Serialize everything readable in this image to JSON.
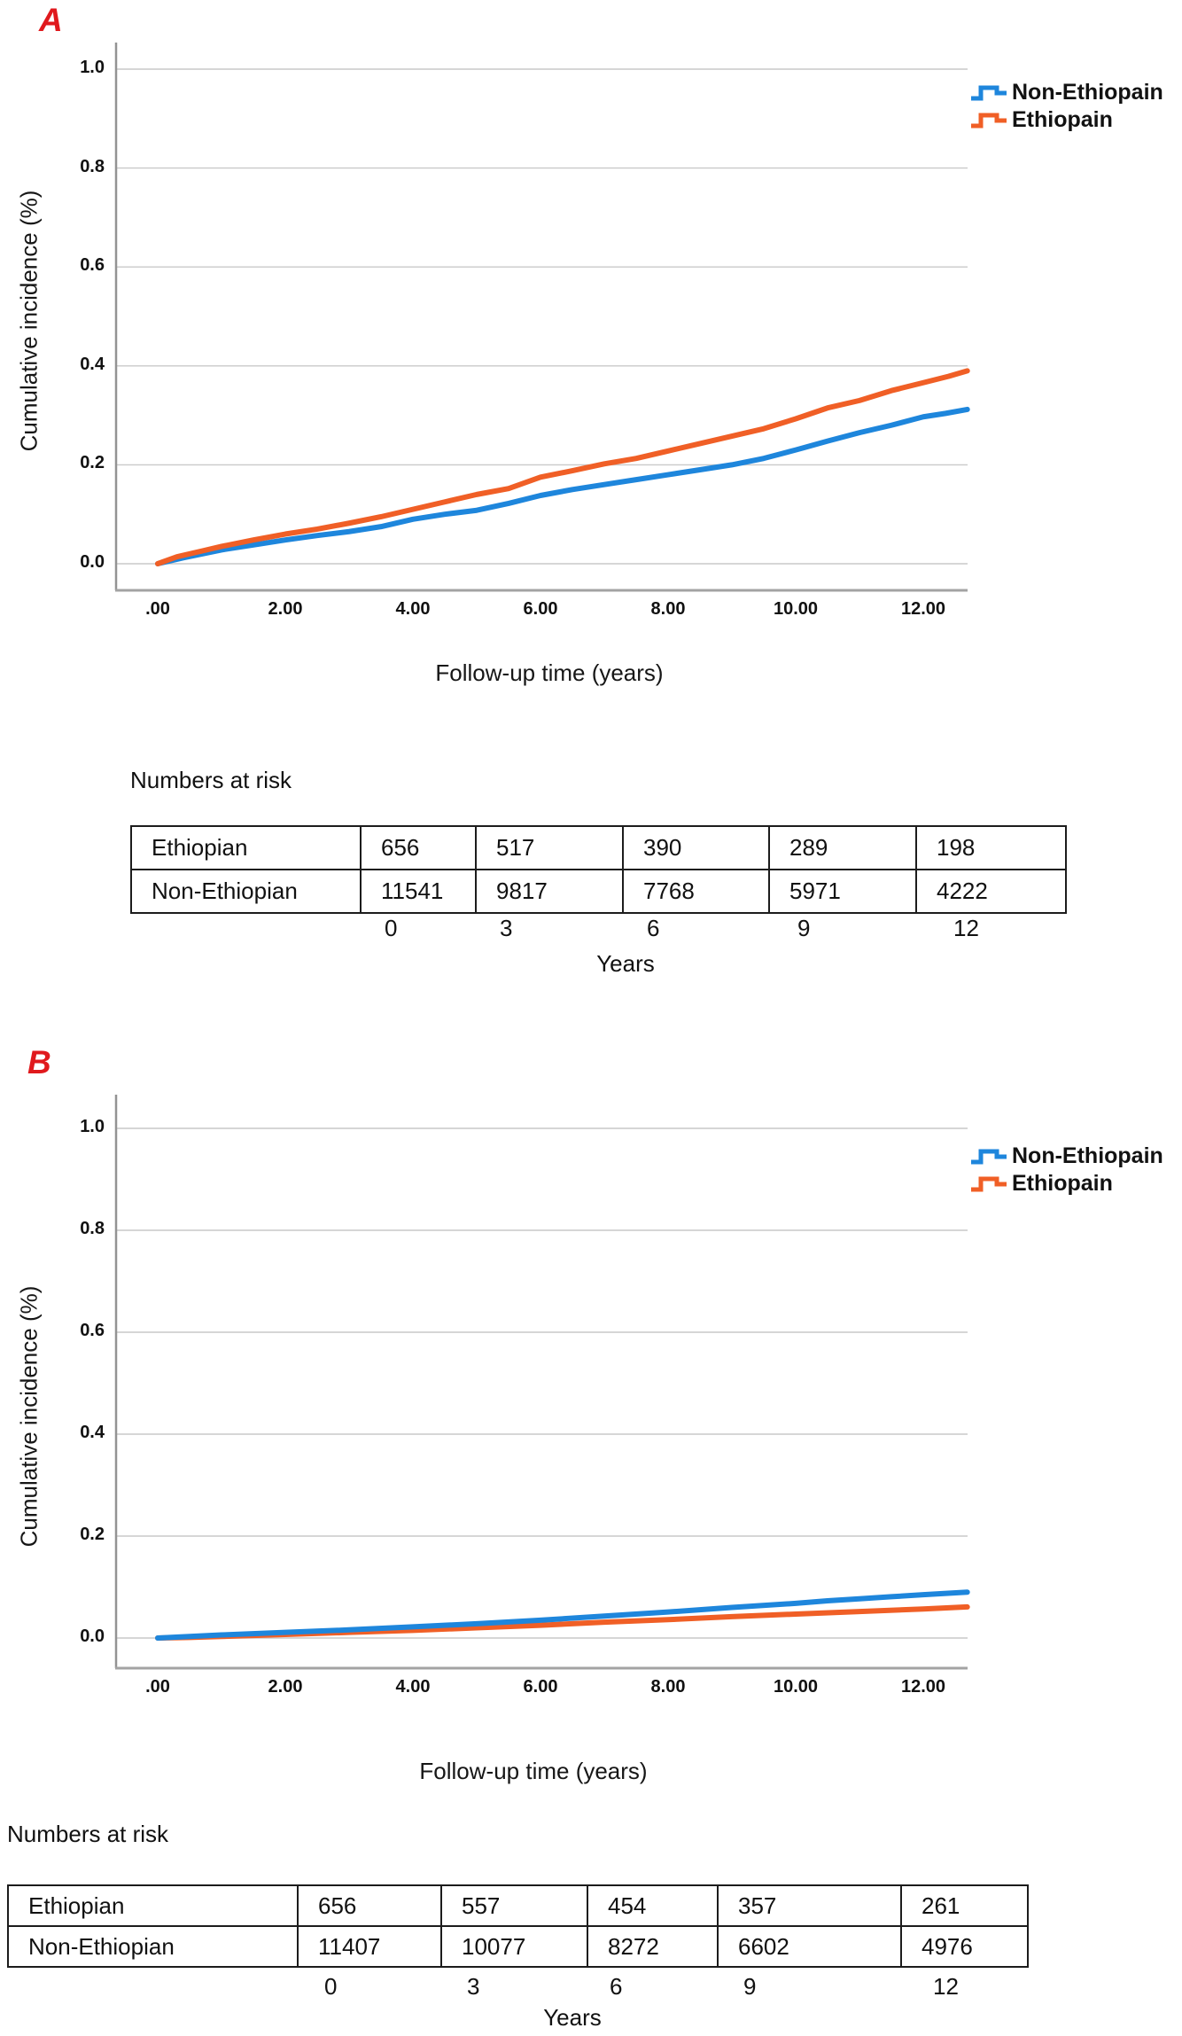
{
  "panels": [
    {
      "label": "A",
      "y_axis_title": "Cumulative incidence (%)",
      "x_axis_title": "Follow-up time (years)",
      "y_ticks": [
        "1.0",
        "0.8",
        "0.6",
        "0.4",
        "0.2",
        "0.0"
      ],
      "x_ticks": [
        ".00",
        "2.00",
        "4.00",
        "6.00",
        "8.00",
        "10.00",
        "12.00"
      ],
      "legend": [
        {
          "name": "Non-Ethiopain",
          "color": "#1e86dc"
        },
        {
          "name": "Ethiopain",
          "color": "#f05f26"
        }
      ],
      "risk_table": {
        "title": "Numbers at risk",
        "rows": [
          {
            "label": "Ethiopian",
            "values": [
              "656",
              "517",
              "390",
              "289",
              "198"
            ]
          },
          {
            "label": "Non-Ethiopian",
            "values": [
              "11541",
              "9817",
              "7768",
              "5971",
              "4222"
            ]
          }
        ],
        "time_ticks": [
          "0",
          "3",
          "6",
          "9",
          "12"
        ],
        "time_axis_label": "Years"
      }
    },
    {
      "label": "B",
      "y_axis_title": "Cumulative incidence (%)",
      "x_axis_title": "Follow-up time (years)",
      "y_ticks": [
        "1.0",
        "0.8",
        "0.6",
        "0.4",
        "0.2",
        "0.0"
      ],
      "x_ticks": [
        ".00",
        "2.00",
        "4.00",
        "6.00",
        "8.00",
        "10.00",
        "12.00"
      ],
      "legend": [
        {
          "name": "Non-Ethiopain",
          "color": "#1e86dc"
        },
        {
          "name": "Ethiopain",
          "color": "#f05f26"
        }
      ],
      "risk_table": {
        "title": "Numbers at risk",
        "rows": [
          {
            "label": "Ethiopian",
            "values": [
              "656",
              "557",
              "454",
              "357",
              "261"
            ]
          },
          {
            "label": "Non-Ethiopian",
            "values": [
              "11407",
              "10077",
              "8272",
              "6602",
              "4976"
            ]
          }
        ],
        "time_ticks": [
          "0",
          "3",
          "6",
          "9",
          "12"
        ],
        "time_axis_label": "Years"
      }
    }
  ],
  "chart_data": [
    {
      "type": "line",
      "title": "Panel A cumulative incidence",
      "xlabel": "Follow-up time (years)",
      "ylabel": "Cumulative incidence (%)",
      "xlim": [
        0,
        12.7
      ],
      "ylim": [
        0,
        1.05
      ],
      "x_tick_values": [
        0,
        2,
        4,
        6,
        8,
        10,
        12
      ],
      "y_tick_values": [
        0,
        0.2,
        0.4,
        0.6,
        0.8,
        1.0
      ],
      "grid": "horizontal",
      "legend_position": "outside-top-right",
      "draw_order": [
        0,
        1
      ],
      "series": [
        {
          "name": "Non-Ethiopain",
          "color": "#1e86dc",
          "points": [
            [
              0,
              0
            ],
            [
              0.4,
              0.012
            ],
            [
              1,
              0.028
            ],
            [
              1.5,
              0.038
            ],
            [
              2,
              0.048
            ],
            [
              2.5,
              0.057
            ],
            [
              3,
              0.065
            ],
            [
              3.5,
              0.075
            ],
            [
              4,
              0.09
            ],
            [
              4.5,
              0.1
            ],
            [
              5,
              0.108
            ],
            [
              5.5,
              0.122
            ],
            [
              6,
              0.138
            ],
            [
              6.5,
              0.15
            ],
            [
              7,
              0.16
            ],
            [
              7.5,
              0.17
            ],
            [
              8,
              0.18
            ],
            [
              8.5,
              0.19
            ],
            [
              9,
              0.2
            ],
            [
              9.5,
              0.213
            ],
            [
              10,
              0.23
            ],
            [
              10.5,
              0.248
            ],
            [
              11,
              0.265
            ],
            [
              11.5,
              0.28
            ],
            [
              12,
              0.297
            ],
            [
              12.35,
              0.304
            ],
            [
              12.69,
              0.312
            ]
          ]
        },
        {
          "name": "Ethiopain",
          "color": "#f05f26",
          "points": [
            [
              0,
              0
            ],
            [
              0.3,
              0.014
            ],
            [
              0.7,
              0.026
            ],
            [
              1,
              0.035
            ],
            [
              1.5,
              0.048
            ],
            [
              2,
              0.06
            ],
            [
              2.5,
              0.07
            ],
            [
              3,
              0.082
            ],
            [
              3.5,
              0.095
            ],
            [
              4,
              0.11
            ],
            [
              4.5,
              0.125
            ],
            [
              5,
              0.14
            ],
            [
              5.5,
              0.152
            ],
            [
              6,
              0.175
            ],
            [
              6.5,
              0.188
            ],
            [
              7,
              0.202
            ],
            [
              7.5,
              0.213
            ],
            [
              8,
              0.228
            ],
            [
              8.5,
              0.243
            ],
            [
              9,
              0.258
            ],
            [
              9.5,
              0.273
            ],
            [
              10,
              0.293
            ],
            [
              10.5,
              0.315
            ],
            [
              11,
              0.33
            ],
            [
              11.5,
              0.35
            ],
            [
              12,
              0.366
            ],
            [
              12.4,
              0.379
            ],
            [
              12.69,
              0.39
            ]
          ]
        }
      ]
    },
    {
      "type": "line",
      "title": "Panel B cumulative incidence",
      "xlabel": "Follow-up time (years)",
      "ylabel": "Cumulative incidence (%)",
      "xlim": [
        0,
        12.7
      ],
      "ylim": [
        0,
        1.05
      ],
      "x_tick_values": [
        0,
        2,
        4,
        6,
        8,
        10,
        12
      ],
      "y_tick_values": [
        0,
        0.2,
        0.4,
        0.6,
        0.8,
        1.0
      ],
      "grid": "horizontal",
      "legend_position": "outside-top-right",
      "draw_order": [
        1,
        0
      ],
      "series": [
        {
          "name": "Non-Ethiopain",
          "color": "#1e86dc",
          "points": [
            [
              0,
              0
            ],
            [
              0.5,
              0.003
            ],
            [
              1,
              0.006
            ],
            [
              2,
              0.011
            ],
            [
              3,
              0.016
            ],
            [
              4,
              0.022
            ],
            [
              5,
              0.028
            ],
            [
              6,
              0.035
            ],
            [
              7,
              0.043
            ],
            [
              8,
              0.051
            ],
            [
              9,
              0.06
            ],
            [
              10,
              0.068
            ],
            [
              10.5,
              0.073
            ],
            [
              11,
              0.077
            ],
            [
              11.5,
              0.081
            ],
            [
              12,
              0.085
            ],
            [
              12.69,
              0.09
            ]
          ]
        },
        {
          "name": "Ethiopain",
          "color": "#f05f26",
          "points": [
            [
              0,
              0
            ],
            [
              0.5,
              0.001
            ],
            [
              1,
              0.003
            ],
            [
              2,
              0.007
            ],
            [
              3,
              0.011
            ],
            [
              4,
              0.015
            ],
            [
              5,
              0.02
            ],
            [
              6,
              0.025
            ],
            [
              7,
              0.031
            ],
            [
              8,
              0.036
            ],
            [
              9,
              0.042
            ],
            [
              10,
              0.047
            ],
            [
              11,
              0.052
            ],
            [
              12,
              0.057
            ],
            [
              12.69,
              0.061
            ]
          ]
        }
      ]
    }
  ]
}
